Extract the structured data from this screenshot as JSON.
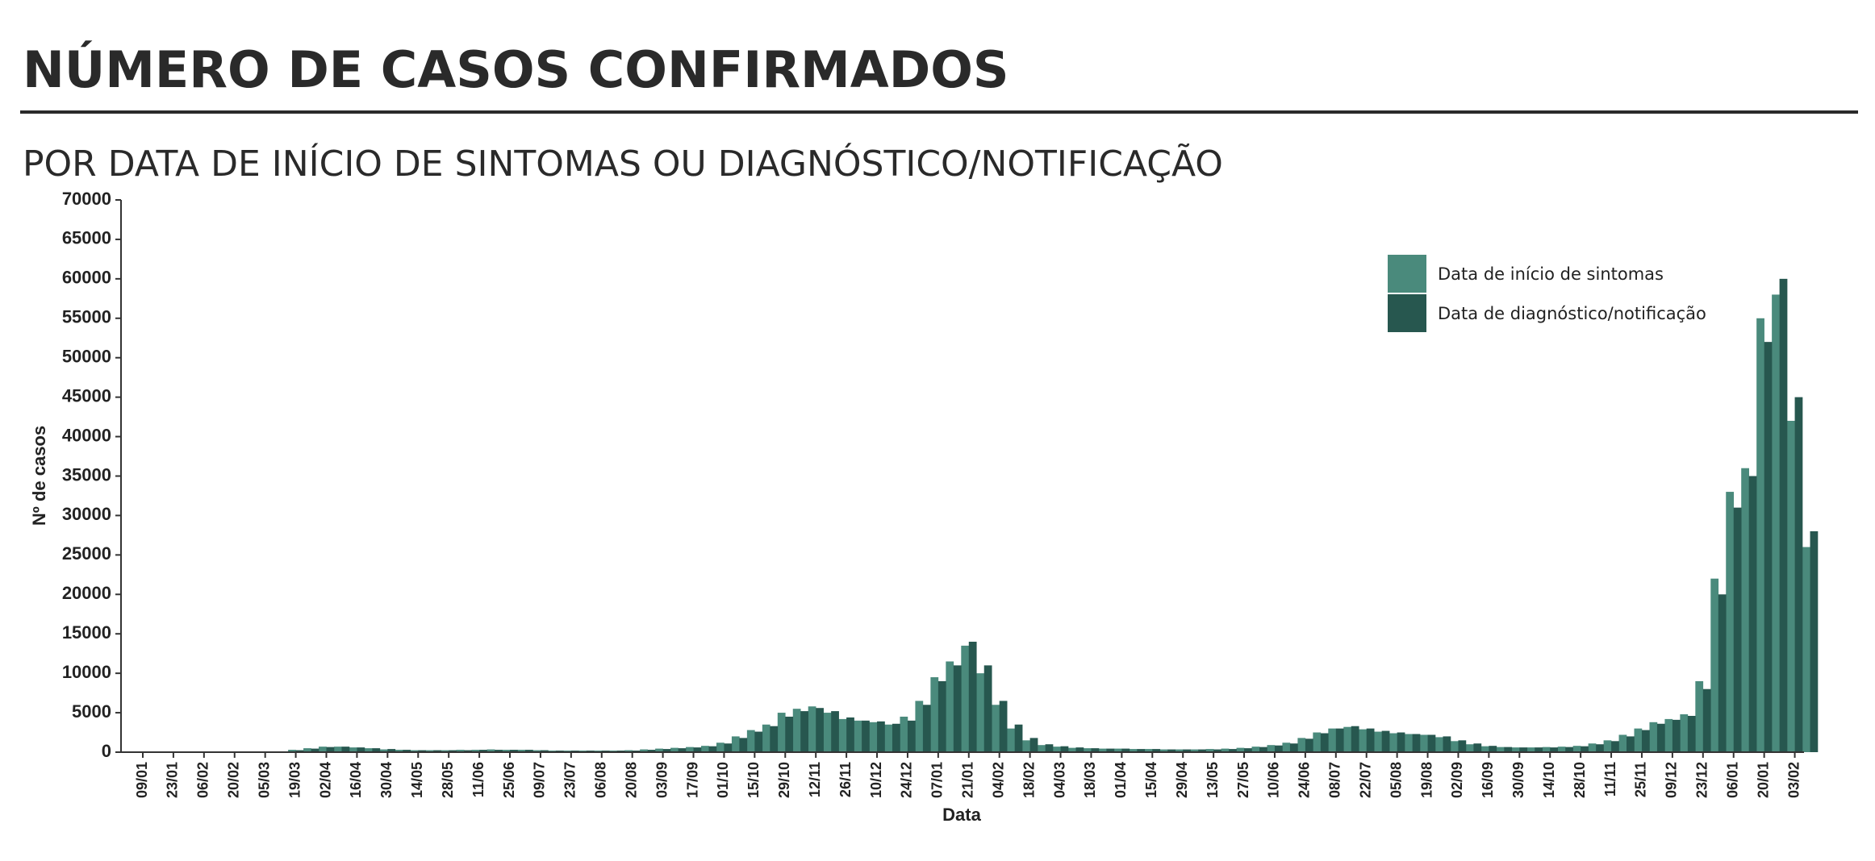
{
  "chart_data": {
    "type": "bar",
    "title": "NÚMERO DE CASOS CONFIRMADOS",
    "subtitle": "POR DATA DE INÍCIO DE SINTOMAS OU DIAGNÓSTICO/NOTIFICAÇÃO",
    "x_label": "Data",
    "y_label": "Nº de casos",
    "categories": [
      "09/01",
      null,
      "23/01",
      null,
      "06/02",
      null,
      "20/02",
      null,
      "05/03",
      null,
      "19/03",
      null,
      "02/04",
      null,
      "16/04",
      null,
      "30/04",
      null,
      "14/05",
      null,
      "28/05",
      null,
      "11/06",
      null,
      "25/06",
      null,
      "09/07",
      null,
      "23/07",
      null,
      "06/08",
      null,
      "20/08",
      null,
      "03/09",
      null,
      "17/09",
      null,
      "01/10",
      null,
      "15/10",
      null,
      "29/10",
      null,
      "12/11",
      null,
      "26/11",
      null,
      "10/12",
      null,
      "24/12",
      null,
      "07/01",
      null,
      "21/01",
      null,
      "04/02",
      null,
      "18/02",
      null,
      "04/03",
      null,
      "18/03",
      null,
      "01/04",
      null,
      "15/04",
      null,
      "29/04",
      null,
      "13/05",
      null,
      "27/05",
      null,
      "10/06",
      null,
      "24/06",
      null,
      "08/07",
      null,
      "22/07",
      null,
      "05/08",
      null,
      "19/08",
      null,
      "02/09",
      null,
      "16/09",
      null,
      "30/09",
      null,
      "14/10",
      null,
      "28/10",
      null,
      "11/11",
      null,
      "25/11",
      null,
      "09/12",
      null,
      "23/12",
      null,
      "06/01",
      null,
      "20/01",
      null,
      "03/02",
      null
    ],
    "series": [
      {
        "name": "Data de início de sintomas",
        "color": "#4a8a7c",
        "values": [
          0,
          0,
          0,
          0,
          0,
          0,
          0,
          5,
          20,
          100,
          300,
          500,
          700,
          700,
          600,
          500,
          350,
          300,
          250,
          250,
          250,
          300,
          300,
          350,
          300,
          300,
          250,
          200,
          200,
          200,
          200,
          200,
          250,
          350,
          450,
          550,
          650,
          800,
          1200,
          2000,
          2800,
          3500,
          5000,
          5500,
          5800,
          5000,
          4200,
          4000,
          3800,
          3500,
          4500,
          6500,
          9500,
          11500,
          13500,
          10000,
          6000,
          3000,
          1500,
          900,
          700,
          550,
          500,
          450,
          450,
          400,
          400,
          350,
          350,
          350,
          400,
          450,
          550,
          700,
          900,
          1200,
          1800,
          2500,
          3000,
          3200,
          2900,
          2600,
          2400,
          2300,
          2200,
          1900,
          1400,
          1000,
          750,
          650,
          600,
          600,
          650,
          700,
          800,
          1100,
          1500,
          2200,
          3000,
          3800,
          4200,
          4800,
          9000,
          22000,
          33000,
          36000,
          55000,
          58000,
          42000,
          26000
        ]
      },
      {
        "name": "Data de diagnóstico/notificação",
        "color": "#27574f",
        "values": [
          0,
          0,
          0,
          0,
          0,
          0,
          0,
          0,
          10,
          60,
          250,
          450,
          650,
          700,
          600,
          500,
          400,
          300,
          250,
          250,
          250,
          250,
          300,
          300,
          300,
          300,
          250,
          200,
          200,
          200,
          200,
          200,
          200,
          300,
          400,
          500,
          600,
          750,
          1100,
          1800,
          2600,
          3300,
          4500,
          5200,
          5600,
          5200,
          4400,
          4000,
          3900,
          3600,
          4000,
          6000,
          9000,
          11000,
          14000,
          11000,
          6500,
          3500,
          1800,
          1000,
          750,
          600,
          500,
          450,
          450,
          400,
          400,
          350,
          350,
          350,
          350,
          400,
          500,
          650,
          850,
          1100,
          1700,
          2400,
          3000,
          3300,
          3000,
          2700,
          2500,
          2300,
          2200,
          2000,
          1500,
          1100,
          800,
          650,
          600,
          600,
          600,
          650,
          750,
          1000,
          1400,
          2000,
          2800,
          3600,
          4100,
          4600,
          8000,
          20000,
          31000,
          35000,
          52000,
          60000,
          45000,
          28000
        ]
      }
    ],
    "ylim": [
      0,
      70000
    ],
    "yticks": [
      0,
      5000,
      10000,
      15000,
      20000,
      25000,
      30000,
      35000,
      40000,
      45000,
      50000,
      55000,
      60000,
      65000,
      70000
    ]
  }
}
